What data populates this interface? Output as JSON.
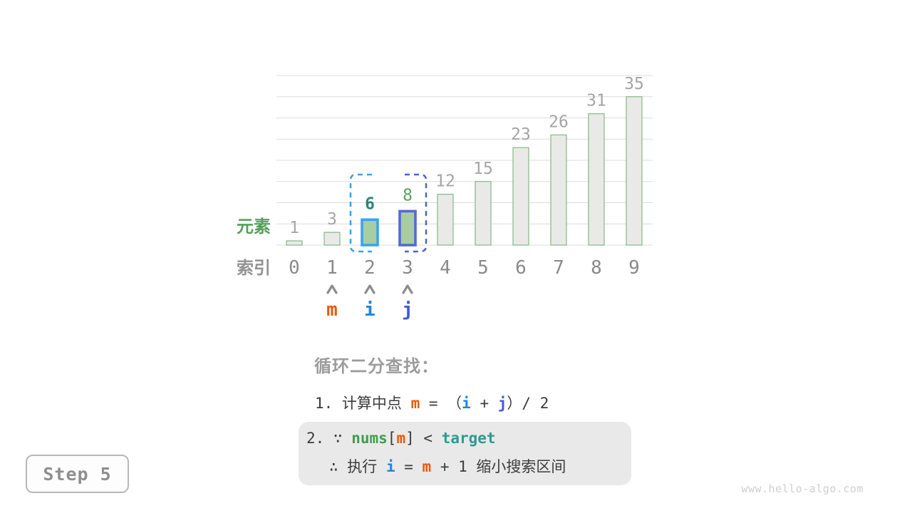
{
  "chart_data": {
    "type": "bar",
    "categories": [
      "0",
      "1",
      "2",
      "3",
      "4",
      "5",
      "6",
      "7",
      "8",
      "9"
    ],
    "values": [
      1,
      3,
      6,
      8,
      12,
      15,
      23,
      26,
      31,
      35
    ],
    "xlabel": "索引",
    "ylabel": "元素",
    "ylim": [
      0,
      40
    ],
    "gridline_step": 5,
    "grid": true,
    "legend": "none",
    "highlighted_bars": [
      {
        "index": 2,
        "value": 6,
        "fill": "#a8cda2",
        "stroke": "#3ba3ee",
        "label_color": "#2a8476",
        "label_bold": true
      },
      {
        "index": 3,
        "value": 8,
        "fill": "#a8cda2",
        "stroke": "#5668d6",
        "label_color": "#5aa35f",
        "label_bold": false
      }
    ],
    "search_window_brackets": {
      "from_index": 2,
      "to_index": 3,
      "style": "dashed",
      "left_color": "#3aa0e8",
      "right_color": "#4b62d4"
    }
  },
  "pointers": [
    {
      "name": "m",
      "index": 1,
      "color": "#e8590c"
    },
    {
      "name": "i",
      "index": 2,
      "color": "#2086e2"
    },
    {
      "name": "j",
      "index": 3,
      "color": "#3f5bd9"
    }
  ],
  "caption": {
    "heading": "循环二分查找：",
    "line1": [
      [
        "1. 计算中点 ",
        "plain"
      ],
      [
        "m",
        "m"
      ],
      [
        " = ",
        "plain"
      ],
      [
        "（",
        "plain"
      ],
      [
        "i",
        "i"
      ],
      [
        " + ",
        "plain"
      ],
      [
        "j",
        "j"
      ],
      [
        "）",
        "plain"
      ],
      [
        "/ 2",
        "plain"
      ]
    ],
    "box_line1": [
      [
        "2. ∵ ",
        "plain"
      ],
      [
        "nums",
        "nums"
      ],
      [
        "[",
        "plain"
      ],
      [
        "m",
        "m"
      ],
      [
        "]",
        "plain"
      ],
      [
        " < ",
        "plain"
      ],
      [
        "target",
        "target"
      ]
    ],
    "box_line2": [
      [
        "∴ 执行 ",
        "plain"
      ],
      [
        "i",
        "i"
      ],
      [
        " = ",
        "plain"
      ],
      [
        "m",
        "m"
      ],
      [
        " + 1 缩小搜索区间",
        "plain"
      ]
    ]
  },
  "step_badge": {
    "label": "Step 5"
  },
  "watermark": {
    "text": "www.hello-algo.com"
  },
  "colors": {
    "background": "#ffffff",
    "grid": "#dcdcdc",
    "bar_fill": "#e9eae7",
    "bar_stroke": "#87b687",
    "value_label": "#a5a5a5",
    "index_label": "#8a8a8a",
    "elements_label": "#55a05a",
    "indices_label": "#939393",
    "arrow": "#8c8c8c",
    "heading": "#9c9c9c",
    "body_text": "#3c3c3c",
    "m": "#e8590c",
    "i": "#2086e2",
    "j": "#3f5bd9",
    "nums": "#3f9e4d",
    "target": "#2a9d8f",
    "note_box_bg": "#e9e9e9",
    "badge_border": "#b8b8b8",
    "badge_text": "#8f8f8f",
    "watermark": "#cfcfcf"
  }
}
